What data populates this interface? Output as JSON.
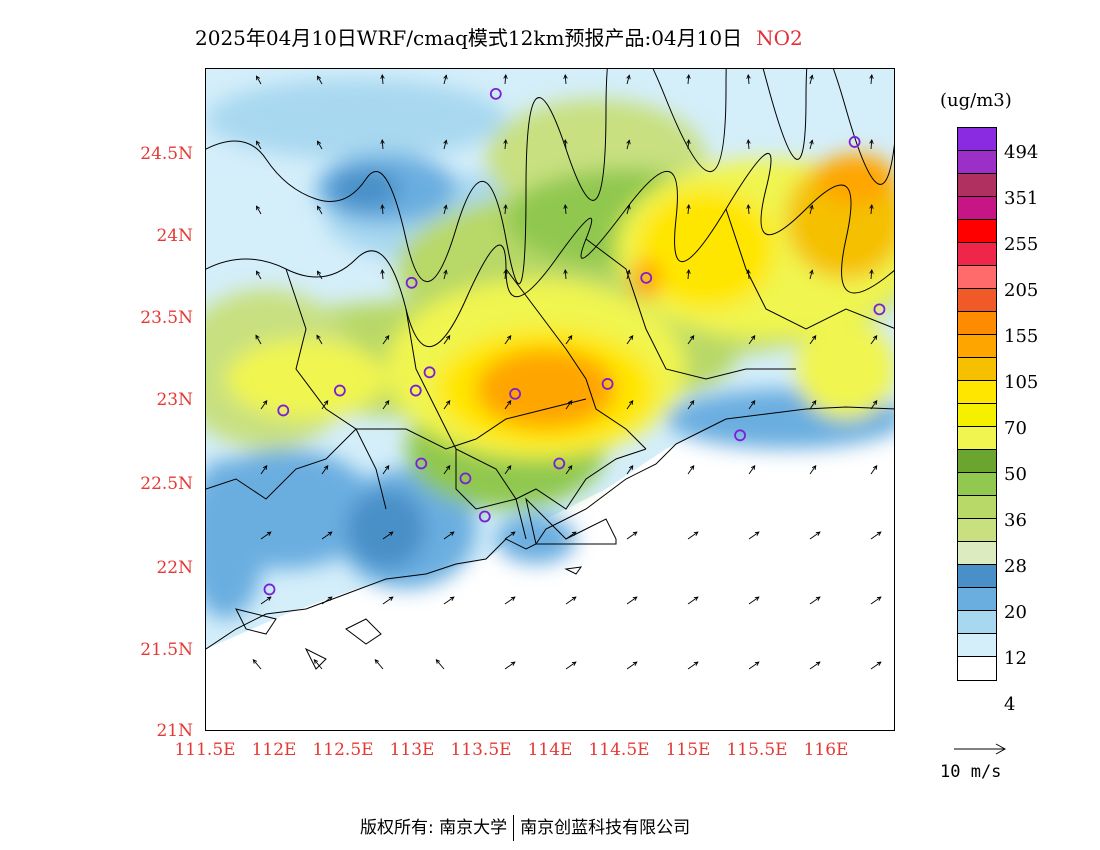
{
  "title": {
    "main": "2025年04月10日WRF/cmaq模式12km预报产品:04月10日",
    "species": "NO2"
  },
  "axes": {
    "lat_labels": [
      "24.5N",
      "24N",
      "23.5N",
      "23N",
      "22.5N",
      "22N",
      "21.5N",
      "21N"
    ],
    "lon_labels": [
      "111.5E",
      "112E",
      "112.5E",
      "113E",
      "113.5E",
      "114E",
      "114.5E",
      "115E",
      "115.5E",
      "116E"
    ]
  },
  "legend": {
    "units": "(ug/m3)",
    "colors": [
      "#8a2be2",
      "#9b30c8",
      "#b03060",
      "#c71585",
      "#ff0000",
      "#f0254a",
      "#ff6a6a",
      "#f05a28",
      "#ff8c00",
      "#ffa500",
      "#f5c000",
      "#ffe600",
      "#f5f000",
      "#f0f550",
      "#6aa530",
      "#90c850",
      "#b8d868",
      "#c8e080",
      "#dcebc0",
      "#4a90c8",
      "#6aaee0",
      "#a8d8f0",
      "#d4eefa",
      "#ffffff"
    ],
    "labels": [
      "494",
      "351",
      "255",
      "205",
      "155",
      "105",
      "70",
      "50",
      "36",
      "28",
      "20",
      "12",
      "4"
    ]
  },
  "vector_reference": {
    "label": "10 m/s"
  },
  "copyright": {
    "left": "版权所有: 南京大学",
    "right": "南京创蓝科技有限公司"
  },
  "map": {
    "lat_range": [
      21.0,
      25.0
    ],
    "lon_range": [
      111.5,
      116.5
    ],
    "stations": [
      {
        "lon": 113.6,
        "lat": 24.85
      },
      {
        "lon": 116.2,
        "lat": 24.56
      },
      {
        "lon": 112.99,
        "lat": 23.71
      },
      {
        "lon": 114.69,
        "lat": 23.74
      },
      {
        "lon": 116.38,
        "lat": 23.55
      },
      {
        "lon": 113.12,
        "lat": 23.17
      },
      {
        "lon": 113.02,
        "lat": 23.06
      },
      {
        "lon": 113.74,
        "lat": 23.04
      },
      {
        "lon": 114.41,
        "lat": 23.1
      },
      {
        "lon": 112.47,
        "lat": 23.06
      },
      {
        "lon": 112.06,
        "lat": 22.94
      },
      {
        "lon": 113.06,
        "lat": 22.62
      },
      {
        "lon": 113.38,
        "lat": 22.53
      },
      {
        "lon": 114.06,
        "lat": 22.62
      },
      {
        "lon": 113.52,
        "lat": 22.3
      },
      {
        "lon": 115.37,
        "lat": 22.79
      },
      {
        "lon": 111.96,
        "lat": 21.86
      }
    ]
  }
}
